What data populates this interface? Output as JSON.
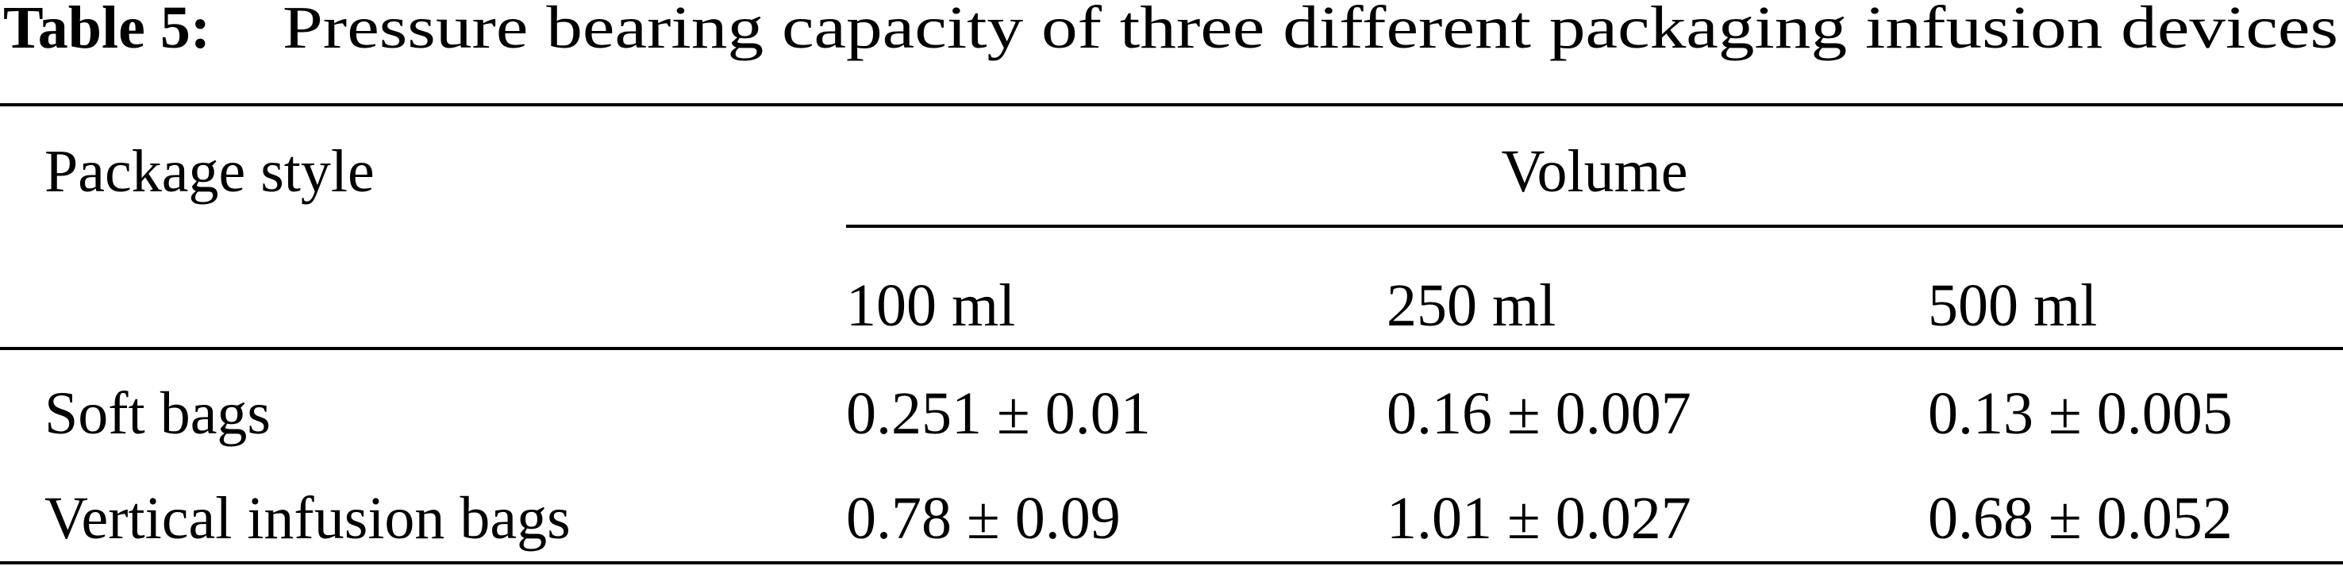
{
  "title": {
    "label": "Table 5:",
    "text": "Pressure bearing capacity of three different packaging infusion devices"
  },
  "table": {
    "header": [
      "Package style",
      "Volume"
    ],
    "subheader": [
      "100 ml",
      "250 ml",
      "500 ml"
    ],
    "rows": [
      [
        "Soft bags",
        "0.251 ± 0.01",
        "0.16 ± 0.007",
        "0.13 ± 0.005"
      ],
      [
        "Vertical infusion bags",
        "0.78 ± 0.09",
        "1.01 ± 0.027",
        "0.68 ± 0.052"
      ]
    ]
  }
}
